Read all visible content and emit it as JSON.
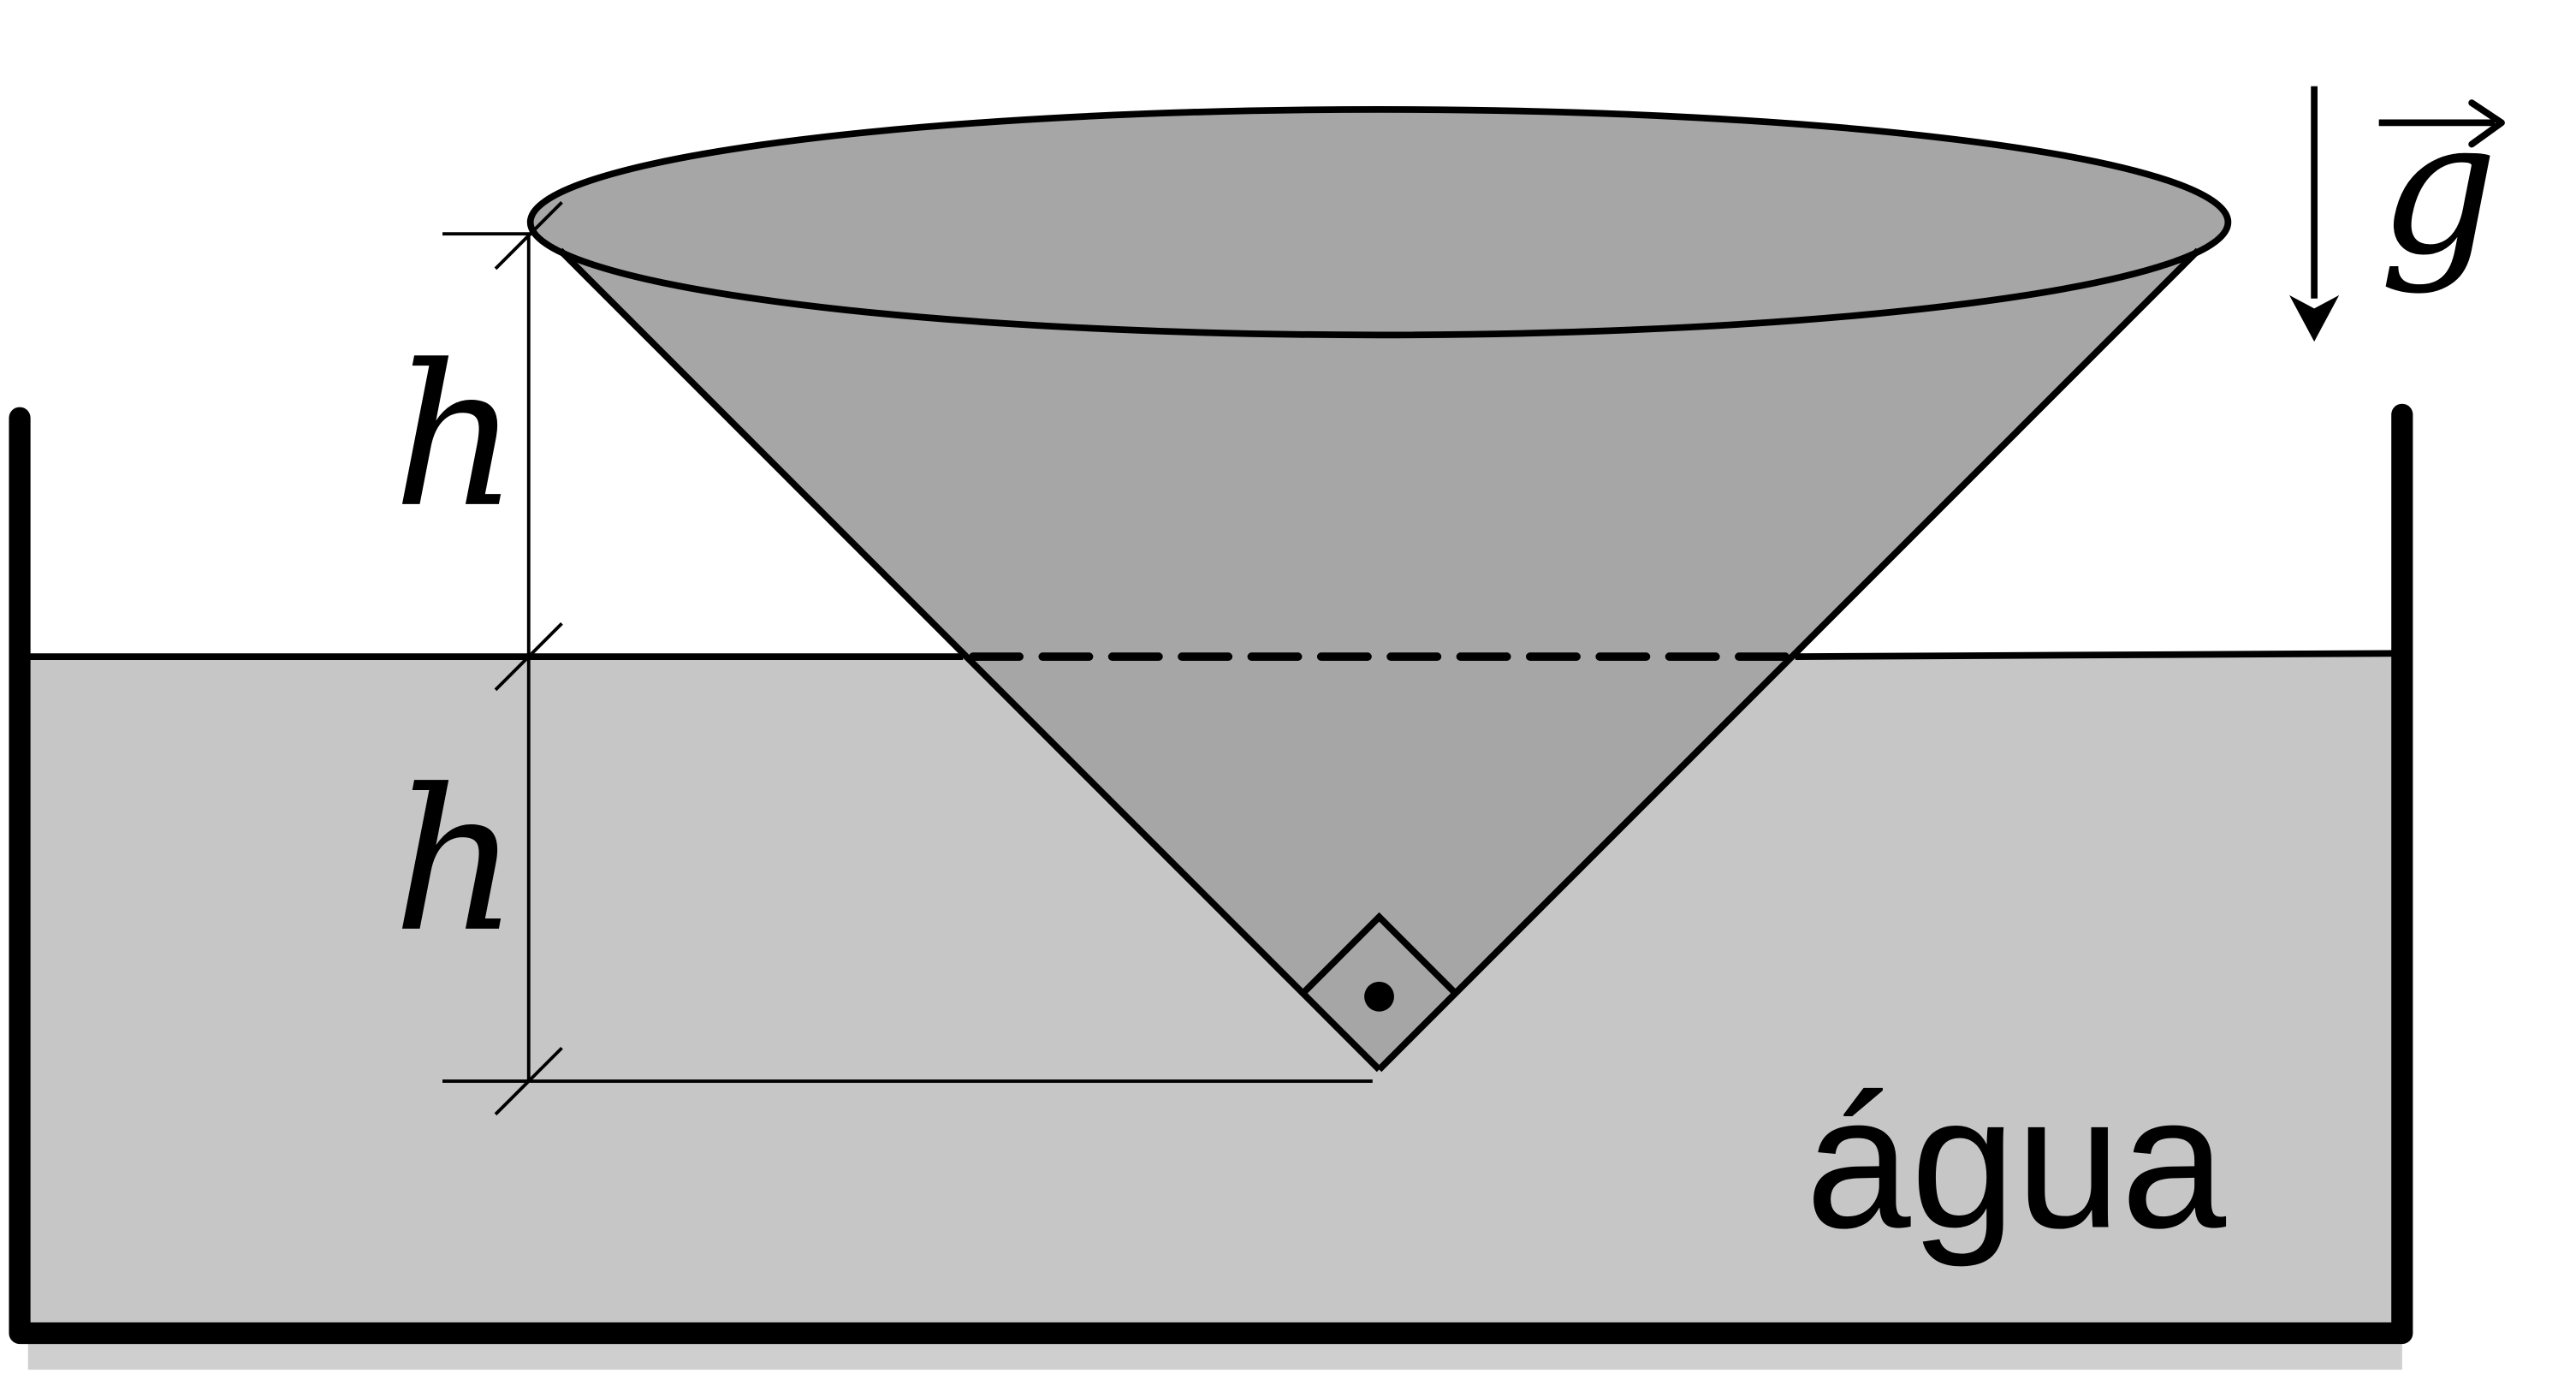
{
  "diagram": {
    "labels": {
      "upper_height": "h",
      "lower_height": "h",
      "liquid": "água",
      "gravity_symbol": "g"
    },
    "colors": {
      "background": "#ffffff",
      "water": "#c6c6c6",
      "water_shadow": "#cfcfcf",
      "cone": "#a6a6a6",
      "stroke": "#000000"
    },
    "icons": {
      "gravity": "down-arrow-icon",
      "vector_hat": "right-arrow-icon",
      "right_angle": "right-angle-marker-icon",
      "center_point": "dot-icon"
    }
  }
}
